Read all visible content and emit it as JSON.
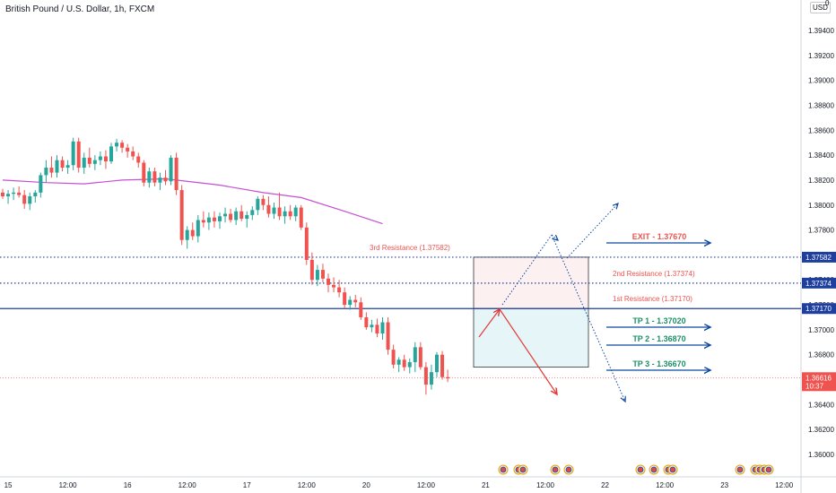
{
  "header": {
    "symbol_title": "British Pound / U.S. Dollar, 1h, FXCM",
    "currency": "USD",
    "currency_extra": "0"
  },
  "colors": {
    "bull": "#26a69a",
    "bear": "#ef5350",
    "ma": "#c64fd2",
    "blue": "#0d47a1",
    "level_blue": "#1e3f9e",
    "resistance_text": "#ef5350",
    "tp_text": "#1c8f6a",
    "exit_text": "#ef5350",
    "price_tag": "#ef5350",
    "sell_zone": "#fdf0f0",
    "buy_zone": "#e6f6f8"
  },
  "chart_data": {
    "type": "candlestick",
    "instrument": "British Pound / U.S. Dollar",
    "timeframe": "1h",
    "source": "FXCM",
    "y_range": [
      1.3592,
      1.3953
    ],
    "price_ticks": [
      "1.39400",
      "1.39200",
      "1.39000",
      "1.38800",
      "1.38600",
      "1.38400",
      "1.38200",
      "1.38000",
      "1.37800",
      "1.37600",
      "1.37400",
      "1.37200",
      "1.37000",
      "1.36800",
      "1.36600",
      "1.36400",
      "1.36200",
      "1.36000"
    ],
    "x_ticks": [
      {
        "label": "15",
        "slot": 1
      },
      {
        "label": "12:00",
        "slot": 12
      },
      {
        "label": "16",
        "slot": 23
      },
      {
        "label": "12:00",
        "slot": 34
      },
      {
        "label": "17",
        "slot": 45
      },
      {
        "label": "12:00",
        "slot": 56
      },
      {
        "label": "20",
        "slot": 67
      },
      {
        "label": "12:00",
        "slot": 78
      },
      {
        "label": "21",
        "slot": 89
      },
      {
        "label": "12:00",
        "slot": 100
      },
      {
        "label": "22",
        "slot": 111
      },
      {
        "label": "12:00",
        "slot": 122
      },
      {
        "label": "23",
        "slot": 133
      },
      {
        "label": "12:00",
        "slot": 144
      }
    ],
    "candles": [
      [
        1.381,
        1.3813,
        1.3805,
        1.3807
      ],
      [
        1.3807,
        1.3812,
        1.3801,
        1.3809
      ],
      [
        1.3809,
        1.3814,
        1.3804,
        1.381
      ],
      [
        1.381,
        1.3815,
        1.3806,
        1.3808
      ],
      [
        1.3808,
        1.3812,
        1.3797,
        1.3801
      ],
      [
        1.3801,
        1.381,
        1.3796,
        1.3807
      ],
      [
        1.3807,
        1.3812,
        1.3802,
        1.381
      ],
      [
        1.381,
        1.3826,
        1.3806,
        1.3824
      ],
      [
        1.3824,
        1.3836,
        1.3818,
        1.383
      ],
      [
        1.383,
        1.3839,
        1.3822,
        1.3826
      ],
      [
        1.3826,
        1.384,
        1.3822,
        1.3836
      ],
      [
        1.3836,
        1.3839,
        1.3827,
        1.383
      ],
      [
        1.383,
        1.3836,
        1.3825,
        1.3832
      ],
      [
        1.3832,
        1.3854,
        1.3828,
        1.3851
      ],
      [
        1.3851,
        1.3854,
        1.3826,
        1.383
      ],
      [
        1.383,
        1.3842,
        1.3825,
        1.3838
      ],
      [
        1.3838,
        1.3846,
        1.383,
        1.3833
      ],
      [
        1.3833,
        1.384,
        1.3828,
        1.3836
      ],
      [
        1.3836,
        1.3843,
        1.3832,
        1.3839
      ],
      [
        1.3839,
        1.3844,
        1.3829,
        1.3835
      ],
      [
        1.3835,
        1.385,
        1.3833,
        1.3847
      ],
      [
        1.3847,
        1.3853,
        1.3843,
        1.385
      ],
      [
        1.385,
        1.3852,
        1.3842,
        1.3846
      ],
      [
        1.3846,
        1.3849,
        1.3838,
        1.3843
      ],
      [
        1.3843,
        1.3847,
        1.3836,
        1.3839
      ],
      [
        1.3839,
        1.3842,
        1.383,
        1.3834
      ],
      [
        1.3834,
        1.3836,
        1.3815,
        1.3818
      ],
      [
        1.3818,
        1.383,
        1.3814,
        1.3827
      ],
      [
        1.3827,
        1.383,
        1.3815,
        1.3818
      ],
      [
        1.3818,
        1.3826,
        1.3812,
        1.3822
      ],
      [
        1.3822,
        1.3828,
        1.3816,
        1.3819
      ],
      [
        1.3819,
        1.384,
        1.3816,
        1.3838
      ],
      [
        1.3838,
        1.3842,
        1.3808,
        1.3812
      ],
      [
        1.3812,
        1.3816,
        1.3768,
        1.3772
      ],
      [
        1.3772,
        1.3783,
        1.3765,
        1.378
      ],
      [
        1.378,
        1.3786,
        1.3772,
        1.3775
      ],
      [
        1.3775,
        1.3792,
        1.377,
        1.3788
      ],
      [
        1.3788,
        1.3795,
        1.3782,
        1.3786
      ],
      [
        1.3786,
        1.3794,
        1.378,
        1.379
      ],
      [
        1.379,
        1.3795,
        1.3782,
        1.3787
      ],
      [
        1.3787,
        1.3794,
        1.3781,
        1.3791
      ],
      [
        1.3791,
        1.3798,
        1.3786,
        1.3793
      ],
      [
        1.3793,
        1.3797,
        1.3786,
        1.3788
      ],
      [
        1.3788,
        1.3798,
        1.3784,
        1.3795
      ],
      [
        1.3795,
        1.38,
        1.3787,
        1.3789
      ],
      [
        1.3789,
        1.3795,
        1.3782,
        1.3792
      ],
      [
        1.3792,
        1.3799,
        1.3788,
        1.3796
      ],
      [
        1.3796,
        1.3807,
        1.3792,
        1.3805
      ],
      [
        1.3805,
        1.3808,
        1.3796,
        1.38
      ],
      [
        1.38,
        1.3807,
        1.379,
        1.3793
      ],
      [
        1.3793,
        1.3802,
        1.3789,
        1.3798
      ],
      [
        1.3798,
        1.381,
        1.3788,
        1.3791
      ],
      [
        1.3791,
        1.3799,
        1.3785,
        1.3795
      ],
      [
        1.3795,
        1.38,
        1.3788,
        1.3791
      ],
      [
        1.3791,
        1.38,
        1.3787,
        1.3798
      ],
      [
        1.3798,
        1.38,
        1.378,
        1.3782
      ],
      [
        1.3782,
        1.3786,
        1.3752,
        1.3756
      ],
      [
        1.3756,
        1.3762,
        1.3736,
        1.374
      ],
      [
        1.374,
        1.3752,
        1.3735,
        1.3748
      ],
      [
        1.3748,
        1.3753,
        1.3738,
        1.3741
      ],
      [
        1.3741,
        1.3745,
        1.373,
        1.3736
      ],
      [
        1.3736,
        1.3742,
        1.373,
        1.3734
      ],
      [
        1.3734,
        1.374,
        1.3726,
        1.373
      ],
      [
        1.373,
        1.3734,
        1.3717,
        1.372
      ],
      [
        1.372,
        1.3727,
        1.3716,
        1.3724
      ],
      [
        1.3724,
        1.3728,
        1.3718,
        1.3722
      ],
      [
        1.3722,
        1.3726,
        1.3708,
        1.371
      ],
      [
        1.371,
        1.3714,
        1.37,
        1.3702
      ],
      [
        1.3702,
        1.3708,
        1.3698,
        1.3704
      ],
      [
        1.3704,
        1.3709,
        1.3694,
        1.3697
      ],
      [
        1.3697,
        1.371,
        1.3692,
        1.3706
      ],
      [
        1.3706,
        1.371,
        1.368,
        1.3684
      ],
      [
        1.3684,
        1.3688,
        1.3669,
        1.3672
      ],
      [
        1.3672,
        1.3678,
        1.3666,
        1.3676
      ],
      [
        1.3676,
        1.368,
        1.3667,
        1.367
      ],
      [
        1.367,
        1.3677,
        1.3665,
        1.3674
      ],
      [
        1.3674,
        1.369,
        1.3666,
        1.3686
      ],
      [
        1.3686,
        1.369,
        1.3668,
        1.367
      ],
      [
        1.367,
        1.3674,
        1.3648,
        1.3656
      ],
      [
        1.3656,
        1.3672,
        1.3652,
        1.3666
      ],
      [
        1.3666,
        1.3682,
        1.3662,
        1.368
      ],
      [
        1.368,
        1.3683,
        1.366,
        1.3662
      ],
      [
        1.3662,
        1.3668,
        1.3658,
        1.3661
      ]
    ],
    "moving_average": [
      [
        1.382,
        0
      ],
      [
        1.3818,
        8
      ],
      [
        1.3817,
        15
      ],
      [
        1.382,
        22
      ],
      [
        1.3821,
        30
      ],
      [
        1.3816,
        40
      ],
      [
        1.381,
        48
      ],
      [
        1.3806,
        55
      ],
      [
        1.3795,
        63
      ],
      [
        1.3785,
        70
      ]
    ],
    "levels": [
      {
        "price": 1.37582,
        "label": "3rd Resistance (1.37582)",
        "tag": "1.37582",
        "style": "dotted"
      },
      {
        "price": 1.37374,
        "label": "2nd Resistance (1.37374)",
        "tag": "1.37374",
        "style": "dotted"
      },
      {
        "price": 1.3717,
        "label": "1st Resistance (1.37170)",
        "tag": "1.37170",
        "style": "solid"
      }
    ],
    "targets": [
      {
        "label": "EXIT - 1.37670",
        "price": 1.3767,
        "kind": "exit"
      },
      {
        "label": "TP 1 - 1.37020",
        "price": 1.3702,
        "kind": "tp"
      },
      {
        "label": "TP 2 - 1.36870",
        "price": 1.3687,
        "kind": "tp"
      },
      {
        "label": "TP 3 - 1.36670",
        "price": 1.3667,
        "kind": "tp"
      }
    ],
    "current_price": {
      "value": "1.36616",
      "countdown": "10:37",
      "price": 1.36616
    },
    "zones": [
      {
        "name": "sell-zone",
        "from": 1.37582,
        "to": 1.3717
      },
      {
        "name": "buy-zone",
        "from": 1.3717,
        "to": 1.367
      }
    ]
  }
}
